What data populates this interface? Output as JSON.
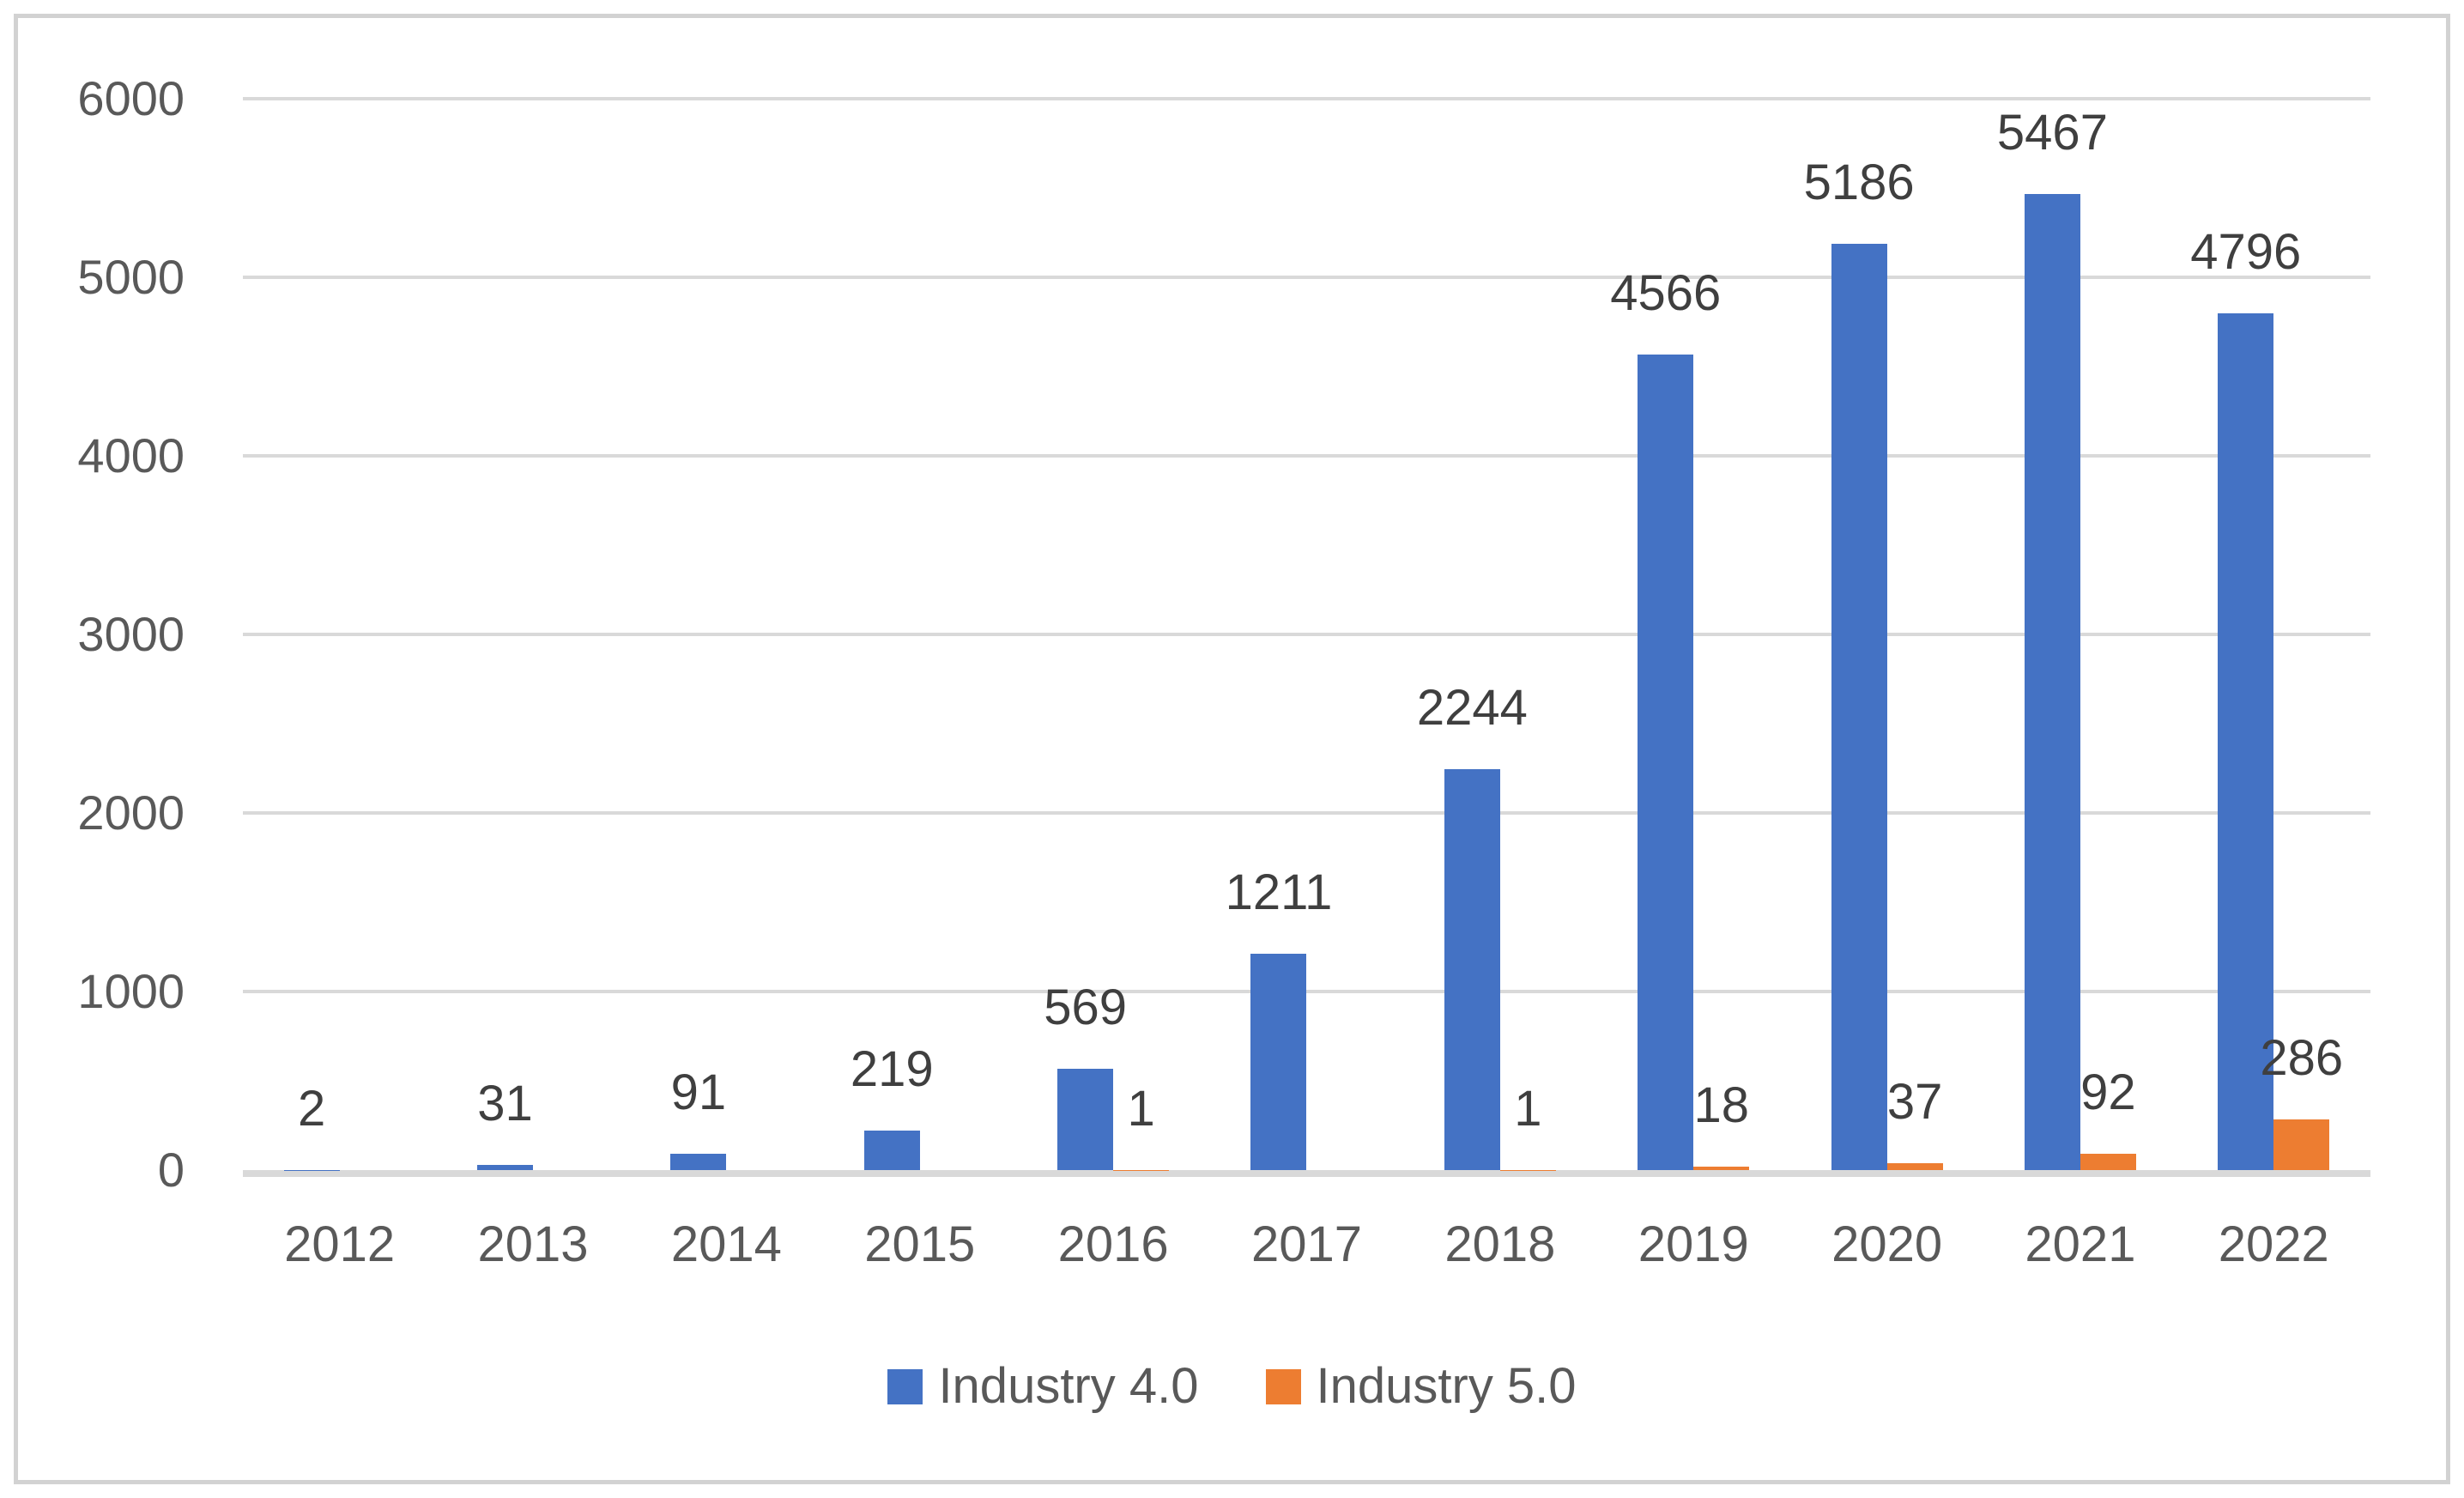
{
  "chart_data": {
    "type": "bar",
    "title": "",
    "categories": [
      "2012",
      "2013",
      "2014",
      "2015",
      "2016",
      "2017",
      "2018",
      "2019",
      "2020",
      "2021",
      "2022"
    ],
    "series": [
      {
        "name": "Industry 4.0",
        "color": "#4472c4",
        "values": [
          2,
          31,
          91,
          219,
          569,
          1211,
          2244,
          4566,
          5186,
          5467,
          4796
        ]
      },
      {
        "name": "Industry 5.0",
        "color": "#ed7d31",
        "values": [
          null,
          null,
          null,
          null,
          1,
          null,
          1,
          18,
          37,
          92,
          286
        ]
      }
    ],
    "ylim": [
      0,
      6000
    ],
    "yticks": [
      0,
      1000,
      2000,
      3000,
      4000,
      5000,
      6000
    ],
    "grid": true,
    "data_labels": true,
    "legend_position": "bottom"
  },
  "legend": {
    "items": [
      {
        "label": "Industry 4.0",
        "color": "#4472c4"
      },
      {
        "label": "Industry 5.0",
        "color": "#ed7d31"
      }
    ]
  },
  "style": {
    "gridline_color": "#d9d9d9",
    "frame_border_color": "#d2d2d2",
    "axis_label_color": "#595959",
    "data_label_color": "#3f3f3f",
    "background": "#ffffff"
  }
}
